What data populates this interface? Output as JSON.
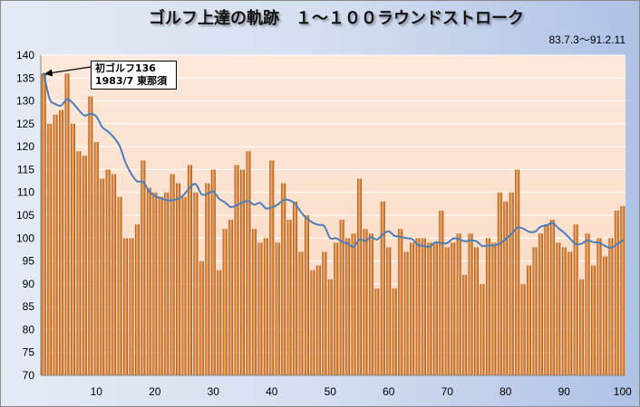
{
  "chart_data": {
    "type": "bar",
    "title": "ゴルフ上達の軌跡　１～１００ラウンドストローク",
    "subtitle": "83.7.3～91.2.11",
    "x": [
      1,
      2,
      3,
      4,
      5,
      6,
      7,
      8,
      9,
      10,
      11,
      12,
      13,
      14,
      15,
      16,
      17,
      18,
      19,
      20,
      21,
      22,
      23,
      24,
      25,
      26,
      27,
      28,
      29,
      30,
      31,
      32,
      33,
      34,
      35,
      36,
      37,
      38,
      39,
      40,
      41,
      42,
      43,
      44,
      45,
      46,
      47,
      48,
      49,
      50,
      51,
      52,
      53,
      54,
      55,
      56,
      57,
      58,
      59,
      60,
      61,
      62,
      63,
      64,
      65,
      66,
      67,
      68,
      69,
      70,
      71,
      72,
      73,
      74,
      75,
      76,
      77,
      78,
      79,
      80,
      81,
      82,
      83,
      84,
      85,
      86,
      87,
      88,
      89,
      90,
      91,
      92,
      93,
      94,
      95,
      96,
      97,
      98,
      99,
      100
    ],
    "x_ticks": [
      10,
      20,
      30,
      40,
      50,
      60,
      70,
      80,
      90,
      100
    ],
    "y_ticks": [
      70,
      75,
      80,
      85,
      90,
      95,
      100,
      105,
      110,
      115,
      120,
      125,
      130,
      135,
      140
    ],
    "ylim": [
      70,
      140
    ],
    "xlim": [
      1,
      100
    ],
    "grid": "horizontal",
    "legend": "none",
    "series": [
      {
        "type": "bar",
        "values": [
          136,
          125,
          127,
          128,
          136,
          125,
          119,
          118,
          131,
          121,
          113,
          115,
          114,
          109,
          100,
          100,
          103,
          117,
          111,
          110,
          109,
          110,
          114,
          112,
          109,
          116,
          110,
          95,
          112,
          115,
          93,
          102,
          104,
          116,
          115,
          119,
          102,
          99,
          100,
          117,
          99,
          112,
          104,
          108,
          97,
          105,
          93,
          94,
          97,
          91,
          99,
          104,
          100,
          101,
          113,
          102,
          101,
          89,
          108,
          98,
          89,
          102,
          97,
          99,
          100,
          100,
          99,
          99,
          106,
          98,
          99,
          101,
          92,
          101,
          98,
          90,
          100,
          99,
          110,
          108,
          110,
          115,
          90,
          94,
          98,
          101,
          103,
          104,
          99,
          98,
          97,
          103,
          91,
          101,
          94,
          100,
          96,
          100,
          106,
          107
        ]
      },
      {
        "type": "line",
        "values": [
          136.0,
          130.5,
          129.3,
          129.0,
          130.4,
          129.5,
          128.0,
          126.8,
          127.2,
          126.6,
          124.3,
          123.3,
          122.0,
          120.1,
          116.5,
          114.0,
          112.4,
          112.3,
          110.3,
          109.2,
          108.8,
          108.3,
          108.3,
          108.6,
          109.5,
          111.1,
          111.8,
          109.6,
          109.7,
          110.2,
          108.6,
          107.8,
          106.8,
          107.2,
          107.8,
          108.1,
          107.3,
          107.7,
          106.5,
          106.7,
          107.3,
          108.3,
          108.3,
          107.5,
          105.7,
          104.3,
          103.4,
          102.9,
          102.6,
          100.0,
          100.0,
          99.2,
          98.8,
          98.1,
          99.7,
          99.4,
          100.2,
          99.7,
          100.8,
          101.5,
          100.5,
          100.3,
          100.0,
          99.8,
          98.5,
          98.3,
          98.1,
          99.1,
          98.9,
          98.9,
          99.9,
          99.8,
          99.3,
          99.5,
          99.3,
          98.3,
          98.4,
          98.4,
          98.8,
          99.8,
          100.9,
          102.3,
          102.1,
          101.4,
          101.4,
          102.5,
          102.8,
          103.3,
          102.2,
          101.2,
          99.9,
          98.7,
          98.8,
          99.5,
          99.1,
          99.0,
          98.3,
          97.9,
          98.6,
          99.5
        ]
      }
    ],
    "annotations": [
      {
        "round": 1,
        "value": 136,
        "lines": [
          "初ゴルフ136",
          "1983/7 東那須"
        ]
      }
    ]
  },
  "colors": {
    "frame_light": "#e5ebf5",
    "frame_mid": "#d5dff0",
    "frame_dark": "#aec2e6",
    "plot_top": "#fde8da",
    "plot_bottom": "#fad8c0",
    "bar_edge": "#a64f12",
    "bar_center": "#f7b26c",
    "line": "#4a7ebb",
    "grid": "#ffffff"
  }
}
